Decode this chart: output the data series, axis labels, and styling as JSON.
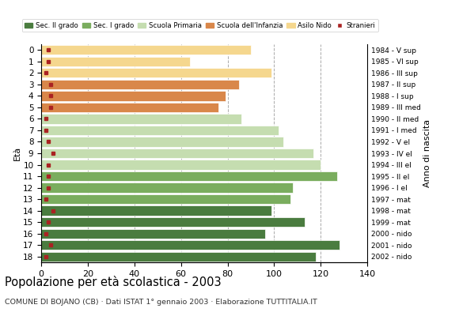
{
  "ages": [
    18,
    17,
    16,
    15,
    14,
    13,
    12,
    11,
    10,
    9,
    8,
    7,
    6,
    5,
    4,
    3,
    2,
    1,
    0
  ],
  "years": [
    "1984 - V sup",
    "1985 - VI sup",
    "1986 - III sup",
    "1987 - II sup",
    "1988 - I sup",
    "1989 - III med",
    "1990 - II med",
    "1991 - I med",
    "1992 - V el",
    "1993 - IV el",
    "1994 - III el",
    "1995 - II el",
    "1996 - I el",
    "1997 - mat",
    "1998 - mat",
    "1999 - mat",
    "2000 - nido",
    "2001 - nido",
    "2002 - nido"
  ],
  "values": [
    118,
    128,
    96,
    113,
    99,
    107,
    108,
    127,
    120,
    117,
    104,
    102,
    86,
    76,
    79,
    85,
    99,
    64,
    90
  ],
  "stranieri": [
    2,
    4,
    2,
    3,
    5,
    2,
    3,
    3,
    3,
    5,
    3,
    2,
    2,
    4,
    4,
    4,
    2,
    3,
    3
  ],
  "bar_colors": [
    "#4a7c3f",
    "#4a7c3f",
    "#4a7c3f",
    "#4a7c3f",
    "#4a7c3f",
    "#7aad5e",
    "#7aad5e",
    "#7aad5e",
    "#c5ddb0",
    "#c5ddb0",
    "#c5ddb0",
    "#c5ddb0",
    "#c5ddb0",
    "#d9874a",
    "#d9874a",
    "#d9874a",
    "#f5d78e",
    "#f5d78e",
    "#f5d78e"
  ],
  "stranieri_color": "#aa2222",
  "title": "Popolazione per età scolastica - 2003",
  "subtitle": "COMUNE DI BOJANO (CB) · Dati ISTAT 1° gennaio 2003 · Elaborazione TUTTITALIA.IT",
  "eta_label": "Età",
  "anno_label": "Anno di nascita",
  "xlim": [
    0,
    140
  ],
  "xticks": [
    0,
    20,
    40,
    60,
    80,
    100,
    120,
    140
  ],
  "grid_color": "#aaaaaa",
  "bg_color": "#ffffff",
  "legend_labels": [
    "Sec. II grado",
    "Sec. I grado",
    "Scuola Primaria",
    "Scuola dell'Infanzia",
    "Asilo Nido",
    "Stranieri"
  ],
  "legend_colors": [
    "#4a7c3f",
    "#7aad5e",
    "#c5ddb0",
    "#d9874a",
    "#f5d78e",
    "#aa2222"
  ]
}
